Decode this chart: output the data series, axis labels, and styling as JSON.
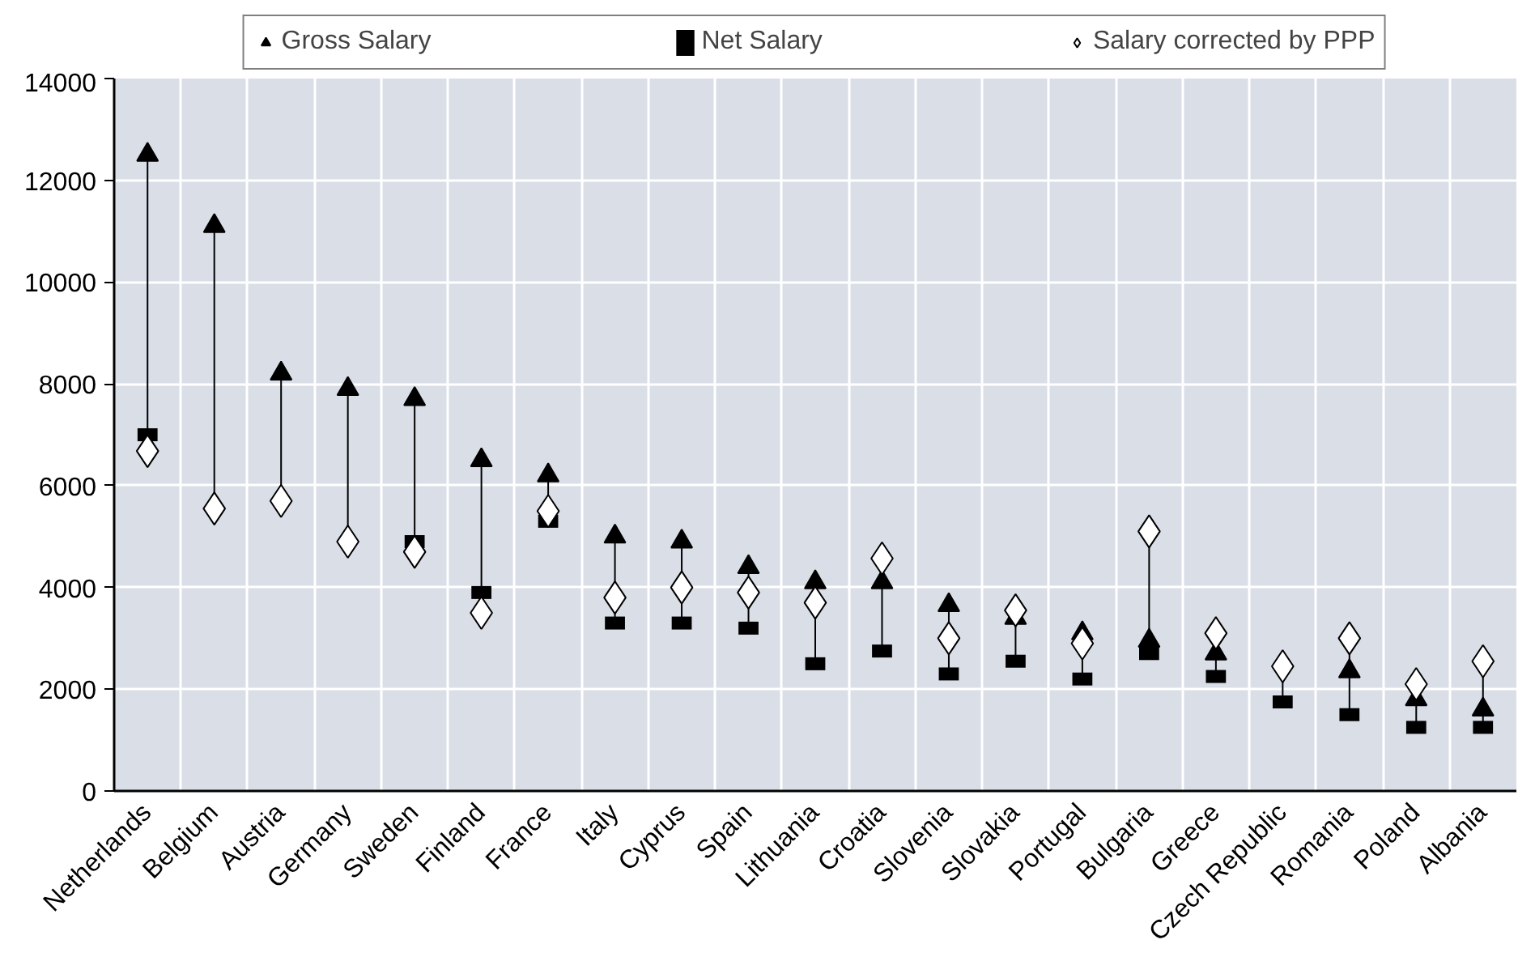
{
  "chart_data": {
    "type": "scatter",
    "categories": [
      "Netherlands",
      "Belgium",
      "Austria",
      "Germany",
      "Sweden",
      "Finland",
      "France",
      "Italy",
      "Cyprus",
      "Spain",
      "Lithuania",
      "Croatia",
      "Slovenia",
      "Slovakia",
      "Portugal",
      "Bulgaria",
      "Greece",
      "Czech Republic",
      "Romania",
      "Poland",
      "Albania"
    ],
    "series": [
      {
        "name": "Gross Salary",
        "color": "#000000",
        "marker": "triangle",
        "values": [
          12500,
          11100,
          8200,
          7900,
          7700,
          6500,
          6200,
          5000,
          4900,
          4400,
          4100,
          4100,
          3650,
          3400,
          3100,
          2950,
          2700,
          null,
          2350,
          1800,
          1600
        ]
      },
      {
        "name": "Net Salary",
        "color": "#000000",
        "values": [
          7000,
          null,
          null,
          null,
          4900,
          3900,
          5300,
          3300,
          3300,
          3200,
          2500,
          2750,
          2300,
          2550,
          2200,
          2700,
          2250,
          1750,
          1500,
          1250,
          1250
        ]
      },
      {
        "name": "Salary corrected by PPP",
        "color": "#ffffff",
        "marker": "diamond",
        "values": [
          6680,
          5550,
          5700,
          4900,
          4700,
          3500,
          5500,
          3800,
          4000,
          3900,
          3700,
          4570,
          3000,
          3550,
          2900,
          5100,
          3100,
          2450,
          3000,
          2100,
          2550
        ]
      }
    ],
    "ylim": [
      0,
      14000
    ],
    "yticks": [
      0,
      2000,
      4000,
      6000,
      8000,
      10000,
      12000,
      14000
    ],
    "grid": true,
    "legend": "top"
  }
}
